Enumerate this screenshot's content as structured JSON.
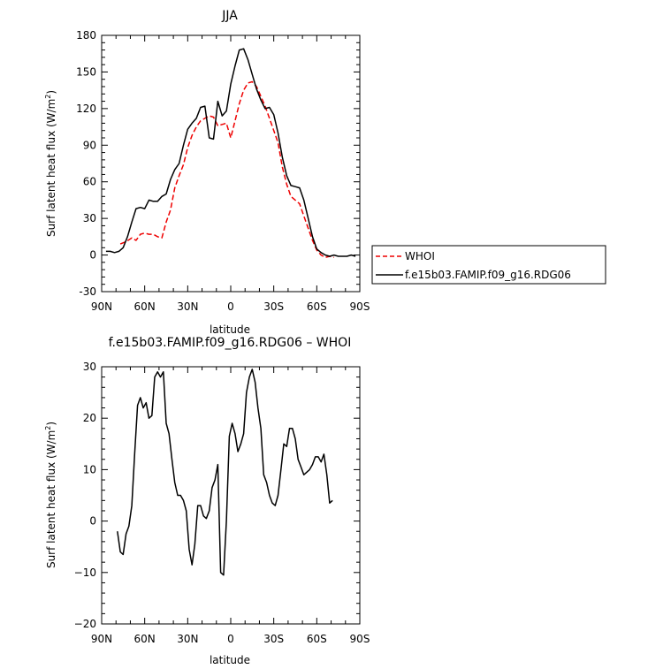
{
  "chart_data": [
    {
      "type": "line",
      "title": "JJA",
      "xlabel": "latitude",
      "ylabel": "Surf latent heat flux (W/m",
      "ylabel_sup": "2",
      "ylabel_close": ")",
      "xlim": [
        90,
        -90
      ],
      "ylim": [
        -30,
        180
      ],
      "xticks": [
        {
          "v": 90,
          "label": "90N"
        },
        {
          "v": 60,
          "label": "60N"
        },
        {
          "v": 30,
          "label": "30N"
        },
        {
          "v": 0,
          "label": "0"
        },
        {
          "v": -30,
          "label": "30S"
        },
        {
          "v": -60,
          "label": "60S"
        },
        {
          "v": -90,
          "label": "90S"
        }
      ],
      "yticks": [
        {
          "v": 180,
          "label": "180"
        },
        {
          "v": 150,
          "label": "150"
        },
        {
          "v": 120,
          "label": "120"
        },
        {
          "v": 90,
          "label": "90"
        },
        {
          "v": 60,
          "label": "60"
        },
        {
          "v": 30,
          "label": "30"
        },
        {
          "v": 0,
          "label": "0"
        },
        {
          "v": -30,
          "label": "-30"
        }
      ],
      "legend_labels": [
        "WHOI",
        "f.e15b03.FAMIP.f09_g16.RDG06"
      ],
      "series": [
        {
          "name": "WHOI",
          "color": "#ee0000",
          "dash": "dashed",
          "x": [
            77,
            73,
            69,
            66,
            63,
            60,
            57,
            54,
            51,
            48,
            45,
            42,
            39,
            36,
            33,
            30,
            27,
            24,
            21,
            18,
            15,
            12,
            9,
            6,
            3,
            0,
            -3,
            -6,
            -9,
            -12,
            -15,
            -18,
            -21,
            -24,
            -27,
            -30,
            -33,
            -36,
            -39,
            -42,
            -45,
            -48,
            -51,
            -54,
            -57,
            -60,
            -63,
            -66,
            -69,
            -72
          ],
          "y": [
            9,
            11,
            14,
            12,
            17,
            18,
            17,
            17,
            15,
            14,
            27,
            37,
            55,
            65,
            74,
            88,
            98,
            105,
            110,
            112,
            114,
            113,
            106,
            107,
            108,
            96,
            110,
            124,
            135,
            141,
            142,
            138,
            130,
            122,
            112,
            102,
            92,
            72,
            58,
            48,
            45,
            42,
            32,
            22,
            12,
            4,
            0,
            -2,
            -1,
            -2
          ]
        },
        {
          "name": "f.e15b03.FAMIP.f09_g16.RDG06",
          "color": "#000000",
          "dash": "solid",
          "x": [
            87,
            84,
            81,
            78,
            75,
            72,
            69,
            66,
            63,
            60,
            57,
            54,
            51,
            48,
            45,
            42,
            39,
            36,
            33,
            30,
            27,
            24,
            21,
            18,
            15,
            12,
            9,
            6,
            3,
            0,
            -3,
            -6,
            -9,
            -12,
            -15,
            -18,
            -21,
            -24,
            -27,
            -30,
            -33,
            -36,
            -39,
            -42,
            -45,
            -48,
            -51,
            -54,
            -57,
            -60,
            -63,
            -66,
            -69,
            -72,
            -75,
            -78,
            -81,
            -84,
            -87
          ],
          "y": [
            3,
            3,
            2,
            3,
            6,
            15,
            27,
            38,
            39,
            38,
            45,
            44,
            44,
            48,
            50,
            62,
            70,
            75,
            90,
            103,
            108,
            112,
            121,
            122,
            96,
            95,
            126,
            114,
            118,
            140,
            155,
            168,
            169,
            160,
            148,
            136,
            127,
            120,
            121,
            115,
            100,
            80,
            65,
            57,
            56,
            55,
            45,
            30,
            15,
            5,
            2,
            0,
            -1,
            0,
            -1,
            -1,
            -1,
            0,
            -1
          ]
        }
      ]
    },
    {
      "type": "line",
      "title": "f.e15b03.FAMIP.f09_g16.RDG06 – WHOI",
      "xlabel": "latitude",
      "ylabel": "Surf latent heat flux (W/m",
      "ylabel_sup": "2",
      "ylabel_close": ")",
      "xlim": [
        90,
        -90
      ],
      "ylim": [
        -20,
        30
      ],
      "xticks": [
        {
          "v": 90,
          "label": "90N"
        },
        {
          "v": 60,
          "label": "60N"
        },
        {
          "v": 30,
          "label": "30N"
        },
        {
          "v": 0,
          "label": "0"
        },
        {
          "v": -30,
          "label": "30S"
        },
        {
          "v": -60,
          "label": "60S"
        },
        {
          "v": -90,
          "label": "90S"
        }
      ],
      "yticks": [
        {
          "v": 30,
          "label": "30"
        },
        {
          "v": 20,
          "label": "20"
        },
        {
          "v": 10,
          "label": "10"
        },
        {
          "v": 0,
          "label": "0"
        },
        {
          "v": -10,
          "label": "−10"
        },
        {
          "v": -20,
          "label": "−20"
        }
      ],
      "series": [
        {
          "color": "#000000",
          "dash": "solid",
          "x": [
            79,
            77,
            75,
            73,
            71,
            69,
            67,
            65,
            63,
            61,
            59,
            57,
            55,
            53,
            51,
            49,
            47,
            45,
            43,
            41,
            39,
            37,
            35,
            33,
            31,
            29,
            27,
            25,
            23,
            21,
            19,
            17,
            15,
            13,
            11,
            9,
            7,
            5,
            3,
            1,
            -1,
            -3,
            -5,
            -7,
            -9,
            -11,
            -13,
            -15,
            -17,
            -19,
            -21,
            -23,
            -25,
            -27,
            -29,
            -31,
            -33,
            -35,
            -37,
            -39,
            -41,
            -43,
            -45,
            -47,
            -49,
            -51,
            -53,
            -55,
            -57,
            -59,
            -61,
            -63,
            -65,
            -67,
            -69,
            -71
          ],
          "y": [
            -2,
            -6,
            -6.5,
            -2.5,
            -1,
            3,
            13,
            22.5,
            24,
            22,
            23,
            20,
            20.5,
            28,
            29,
            28,
            29,
            19,
            17,
            12,
            7.5,
            5,
            5,
            4,
            2,
            -5.5,
            -8.5,
            -4.5,
            3,
            3,
            1,
            0.5,
            2,
            6.5,
            8,
            11,
            -10,
            -10.5,
            0,
            16.5,
            19,
            17,
            13.5,
            15,
            17,
            25,
            28,
            29.5,
            27,
            22,
            18,
            9,
            7.5,
            5,
            3.5,
            3,
            5,
            10,
            15,
            14.5,
            18,
            18,
            16,
            12,
            10.5,
            9,
            9.5,
            10,
            11,
            12.5,
            12.5,
            11.5,
            13,
            9,
            3.5,
            4
          ]
        }
      ]
    }
  ]
}
